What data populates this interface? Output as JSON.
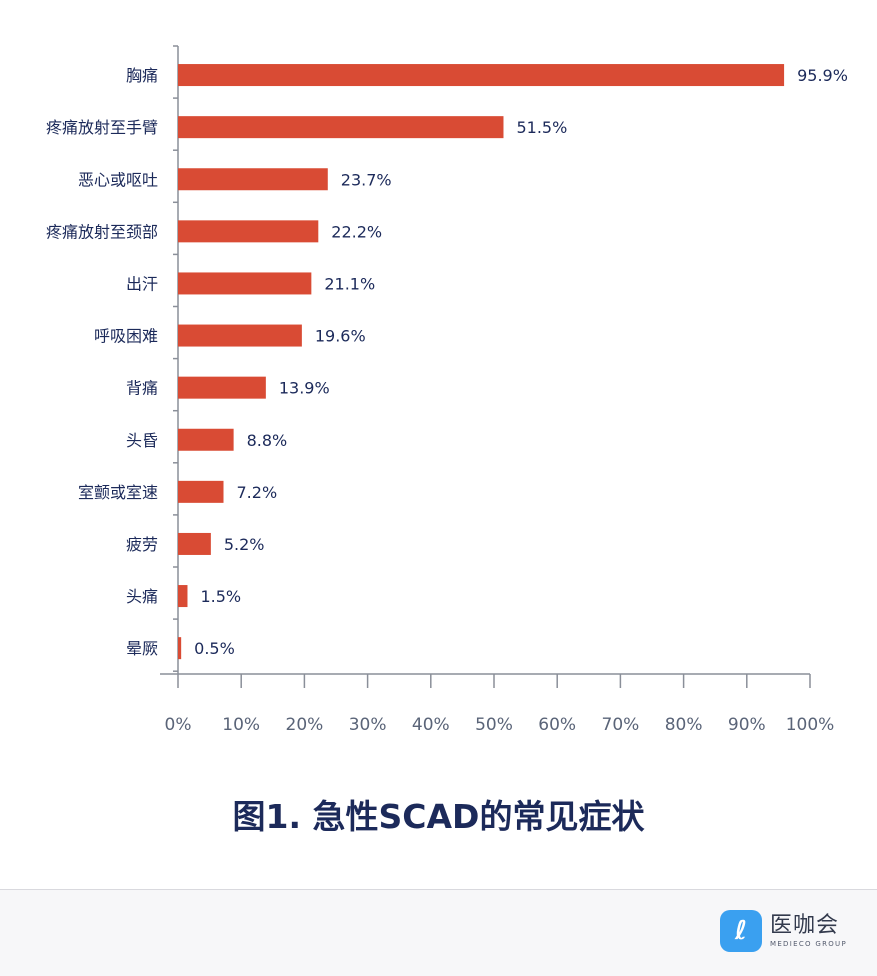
{
  "chart_data": {
    "type": "bar",
    "orientation": "horizontal",
    "categories": [
      "胸痛",
      "疼痛放射至手臂",
      "恶心或呕吐",
      "疼痛放射至颈部",
      "出汗",
      "呼吸困难",
      "背痛",
      "头昏",
      "室颤或室速",
      "疲劳",
      "头痛",
      "晕厥"
    ],
    "values": [
      95.9,
      51.5,
      23.7,
      22.2,
      21.1,
      19.6,
      13.9,
      8.8,
      7.2,
      5.2,
      1.5,
      0.5
    ],
    "value_labels": [
      "95.9%",
      "51.5%",
      "23.7%",
      "22.2%",
      "21.1%",
      "19.6%",
      "13.9%",
      "8.8%",
      "7.2%",
      "5.2%",
      "1.5%",
      "0.5%"
    ],
    "x_ticks": [
      "0%",
      "10%",
      "20%",
      "30%",
      "40%",
      "50%",
      "60%",
      "70%",
      "80%",
      "90%",
      "100%"
    ],
    "xlim": [
      0,
      100
    ],
    "title": "图1. 急性SCAD的常见症状",
    "xlabel": "",
    "ylabel": "",
    "grid": false,
    "bar_color": "#d94b34"
  },
  "logo": {
    "name": "医咖会",
    "subtitle": "MEDIECO GROUP",
    "mark_glyph": "ℓ"
  }
}
